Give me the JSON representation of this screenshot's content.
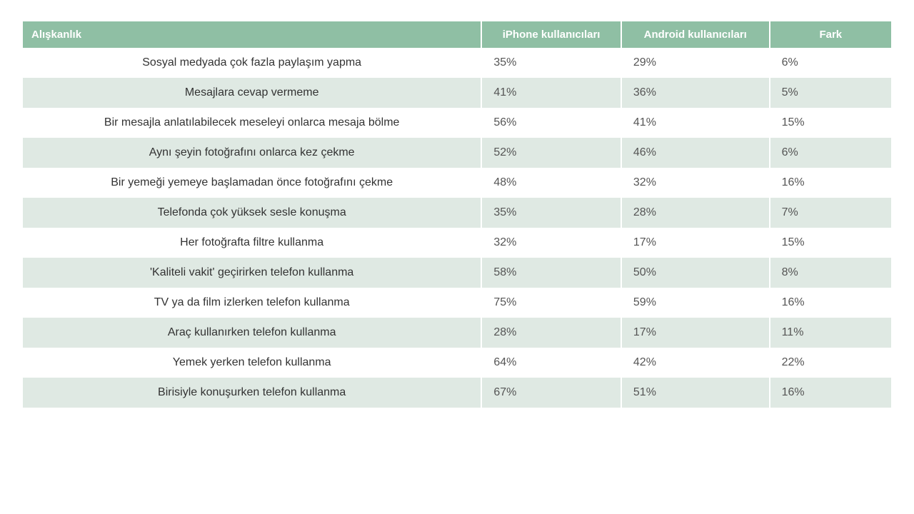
{
  "table": {
    "header_bg": "#8fbfa4",
    "header_text_color": "#ffffff",
    "row_odd_bg": "#ffffff",
    "row_even_bg": "#dfe9e3",
    "cell_text_color": "#555555",
    "habit_text_color": "#333333",
    "font_size_header": 15,
    "font_size_cell": 16,
    "columns": [
      "Alışkanlık",
      "iPhone kullanıcıları",
      "Android kullanıcıları",
      "Fark"
    ],
    "rows": [
      {
        "habit": "Sosyal medyada çok fazla paylaşım yapma",
        "iphone": "35%",
        "android": "29%",
        "diff": "6%"
      },
      {
        "habit": "Mesajlara cevap vermeme",
        "iphone": "41%",
        "android": "36%",
        "diff": "5%"
      },
      {
        "habit": "Bir mesajla anlatılabilecek meseleyi onlarca mesaja bölme",
        "iphone": "56%",
        "android": "41%",
        "diff": "15%"
      },
      {
        "habit": "Aynı şeyin fotoğrafını onlarca kez çekme",
        "iphone": "52%",
        "android": "46%",
        "diff": "6%"
      },
      {
        "habit": "Bir yemeği yemeye başlamadan önce fotoğrafını çekme",
        "iphone": "48%",
        "android": "32%",
        "diff": "16%"
      },
      {
        "habit": "Telefonda çok yüksek sesle konuşma",
        "iphone": "35%",
        "android": "28%",
        "diff": "7%"
      },
      {
        "habit": "Her fotoğrafta filtre kullanma",
        "iphone": "32%",
        "android": "17%",
        "diff": "15%"
      },
      {
        "habit": "'Kaliteli vakit' geçirirken telefon kullanma",
        "iphone": "58%",
        "android": "50%",
        "diff": "8%"
      },
      {
        "habit": "TV ya da film izlerken telefon kullanma",
        "iphone": "75%",
        "android": "59%",
        "diff": "16%"
      },
      {
        "habit": "Araç kullanırken telefon kullanma",
        "iphone": "28%",
        "android": "17%",
        "diff": "11%"
      },
      {
        "habit": "Yemek yerken telefon kullanma",
        "iphone": "64%",
        "android": "42%",
        "diff": "22%"
      },
      {
        "habit": "Birisiyle konuşurken telefon kullanma",
        "iphone": "67%",
        "android": "51%",
        "diff": "16%"
      }
    ]
  }
}
